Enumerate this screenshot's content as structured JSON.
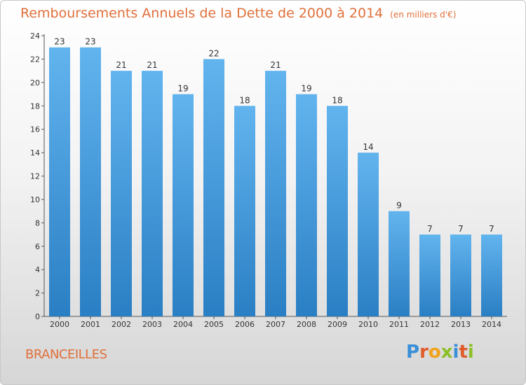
{
  "title": "Remboursements Annuels de la Dette de 2000 à 2014",
  "unit_note": "(en milliers d'€)",
  "commune": "BRANCEILLES",
  "logo": {
    "text": "Proxiti",
    "letters": [
      "P",
      "r",
      "o",
      "x",
      "i",
      "t",
      "i"
    ],
    "colors": [
      "#3a8fd8",
      "#e05a2a",
      "#f2a21a",
      "#8cbf26",
      "#3a8fd8",
      "#e05a2a",
      "#8cbf26"
    ]
  },
  "chart_data": {
    "type": "bar",
    "title": "Remboursements Annuels de la Dette de 2000 à 2014",
    "xlabel": "",
    "ylabel": "en milliers d'€",
    "categories": [
      "2000",
      "2001",
      "2002",
      "2003",
      "2004",
      "2005",
      "2006",
      "2007",
      "2008",
      "2009",
      "2010",
      "2011",
      "2012",
      "2013",
      "2014"
    ],
    "values": [
      23,
      23,
      21,
      21,
      19,
      22,
      18,
      21,
      19,
      18,
      14,
      9,
      7,
      7,
      7
    ],
    "ylim": [
      0,
      24
    ],
    "yticks": [
      0,
      2,
      4,
      6,
      8,
      10,
      12,
      14,
      16,
      18,
      20,
      22,
      24
    ],
    "bar_color_top": "#62b4ee",
    "bar_color_bottom": "#2a7fc4",
    "grid": false
  }
}
